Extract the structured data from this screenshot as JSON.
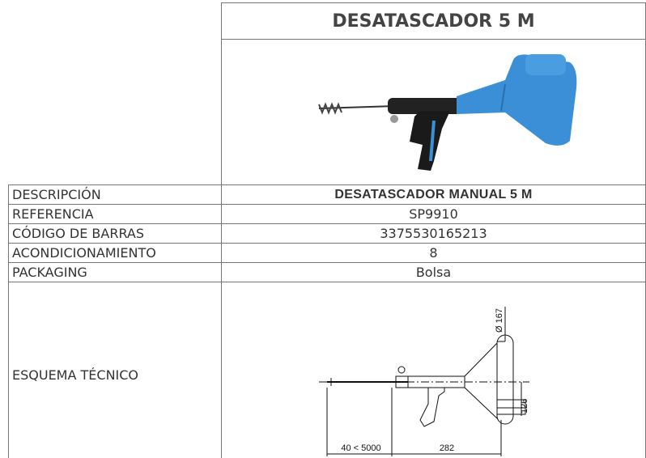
{
  "header": {
    "title": "DESATASCADOR 5 M"
  },
  "table": {
    "rows": [
      [
        "DESCRIPCIÓN",
        "DESATASCADOR MANUAL 5 M"
      ],
      [
        "REFERENCIA",
        "SP9910"
      ],
      [
        "CÓDIGO DE BARRAS",
        "3375530165213"
      ],
      [
        "ACONDICIONAMIENTO",
        "8"
      ],
      [
        "PACKAGING",
        "Bolsa"
      ],
      [
        "ESQUEMA TÉCNICO",
        ""
      ]
    ]
  },
  "schematic": {
    "dimensions": [
      "Ø 167",
      "126",
      "40 < 5000",
      "282"
    ]
  }
}
